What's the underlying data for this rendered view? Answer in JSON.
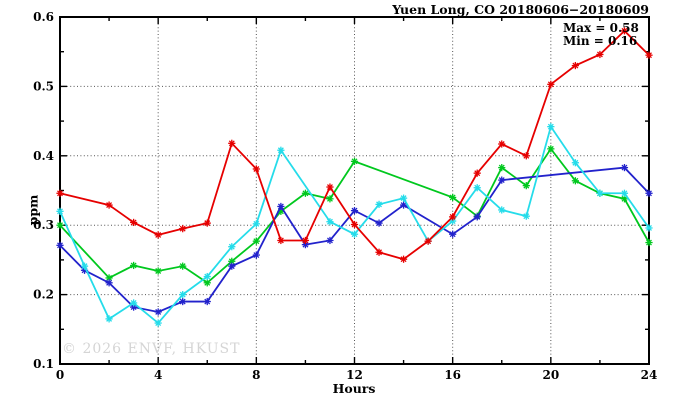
{
  "watermark": "© 2026 ENVF, HKUST",
  "annotations": {
    "max_label": "Max = 0.58",
    "min_label": "Min = 0.16",
    "max_value": 0.58,
    "min_value": 0.16
  },
  "chart_data": {
    "type": "line",
    "title": "Yuen Long, CO 20180606−20180609",
    "xlabel": "Hours",
    "ylabel": "ppm",
    "xlim": [
      0,
      24
    ],
    "ylim": [
      0.1,
      0.6
    ],
    "grid": "dotted",
    "legend_position": "none",
    "x_major_ticks": [
      0,
      4,
      8,
      12,
      16,
      20,
      24
    ],
    "x_minor_ticks": [
      2,
      6,
      10,
      14,
      18,
      22
    ],
    "y_major_ticks": [
      0.1,
      0.2,
      0.3,
      0.4,
      0.5,
      0.6
    ],
    "y_minor_ticks": [
      0.15,
      0.25,
      0.35,
      0.45,
      0.55
    ],
    "x_tick_labels": [
      "0",
      "4",
      "8",
      "12",
      "16",
      "20",
      "24"
    ],
    "y_tick_labels": [
      "0.1",
      "0.2",
      "0.3",
      "0.4",
      "0.5",
      "0.6"
    ],
    "x_gridlines": [
      4,
      8,
      12,
      16,
      20
    ],
    "y_gridlines": [
      0.2,
      0.3,
      0.4,
      0.5
    ],
    "x": [
      0,
      1,
      2,
      3,
      4,
      5,
      6,
      7,
      8,
      9,
      10,
      11,
      12,
      13,
      14,
      15,
      16,
      17,
      18,
      19,
      20,
      21,
      22,
      23,
      24
    ],
    "series": [
      {
        "name": "green-series",
        "color": "#00c81e",
        "values": [
          0.3,
          null,
          0.224,
          0.242,
          0.234,
          0.241,
          0.217,
          0.248,
          0.277,
          0.32,
          0.346,
          0.338,
          0.392,
          null,
          null,
          null,
          0.34,
          0.313,
          0.383,
          0.357,
          0.41,
          0.364,
          0.346,
          0.338,
          0.275
        ]
      },
      {
        "name": "blue-series",
        "color": "#2222cc",
        "values": [
          0.271,
          0.235,
          0.217,
          0.182,
          0.175,
          0.19,
          0.19,
          0.241,
          0.257,
          0.327,
          0.272,
          0.278,
          0.321,
          0.303,
          0.329,
          null,
          0.287,
          0.312,
          0.365,
          null,
          null,
          null,
          null,
          0.383,
          0.346
        ]
      },
      {
        "name": "cyan-series",
        "color": "#25dcea",
        "values": [
          0.32,
          0.241,
          0.165,
          0.188,
          0.159,
          0.2,
          0.226,
          0.269,
          0.302,
          0.408,
          null,
          0.305,
          0.287,
          0.33,
          0.339,
          0.277,
          0.306,
          0.354,
          0.322,
          0.313,
          0.442,
          0.39,
          0.346,
          0.346,
          0.296
        ]
      },
      {
        "name": "red-series",
        "color": "#e60000",
        "values": [
          0.346,
          null,
          0.329,
          0.304,
          0.286,
          0.295,
          0.303,
          0.418,
          0.381,
          0.278,
          0.278,
          0.355,
          0.301,
          0.261,
          0.251,
          0.277,
          0.312,
          0.375,
          0.417,
          0.4,
          0.503,
          0.53,
          0.546,
          0.58,
          0.545
        ]
      }
    ]
  },
  "style": {
    "grid_color": "#555555",
    "frame_color": "#000000",
    "watermark_color": "#d5d5d5"
  }
}
